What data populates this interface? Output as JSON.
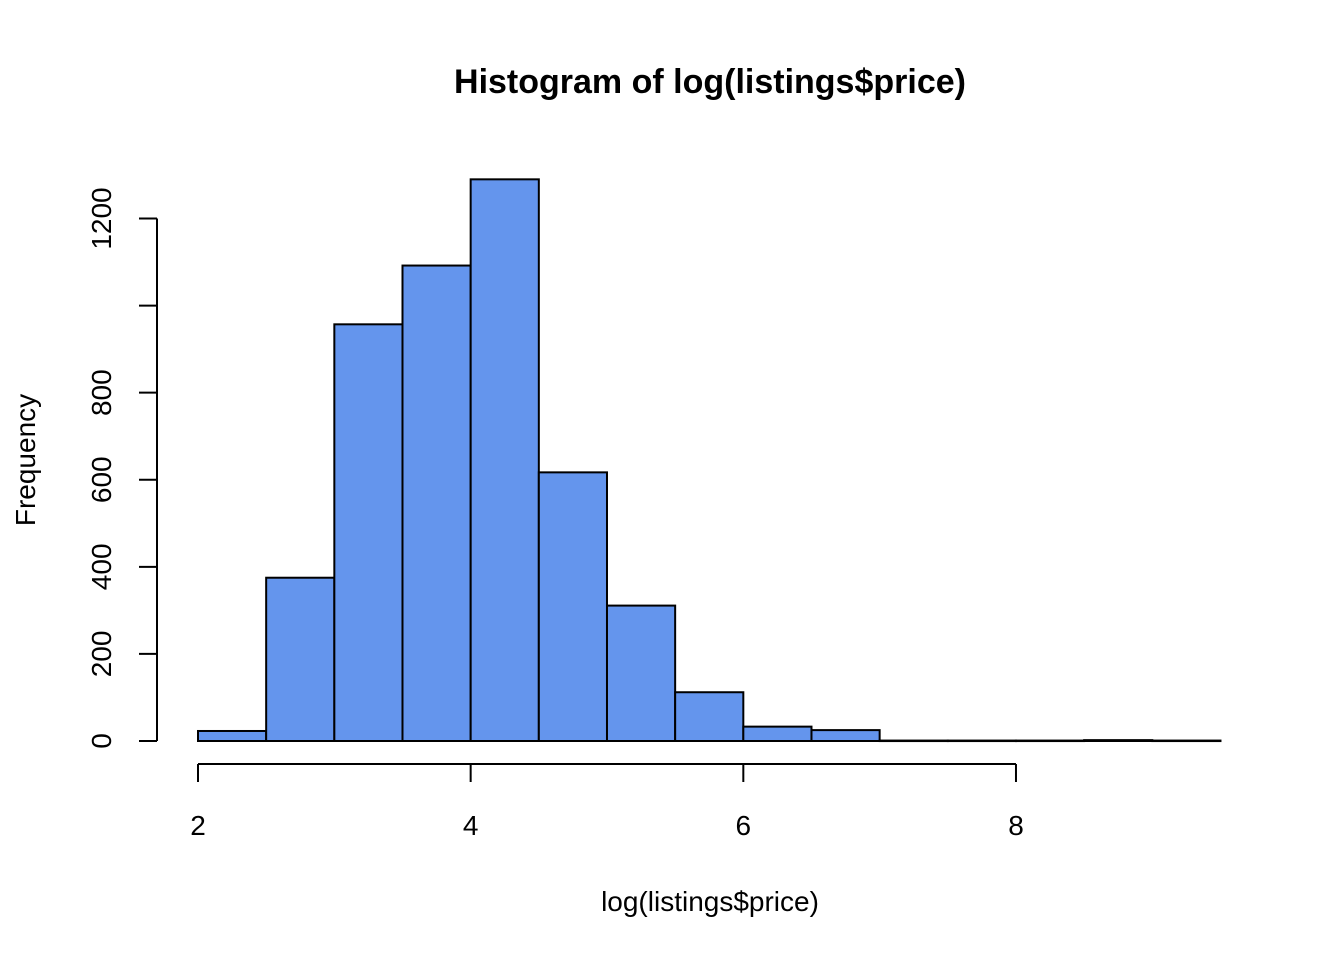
{
  "chart_data": {
    "type": "bar",
    "title": "Histogram of log(listings$price)",
    "xlabel": "log(listings$price)",
    "ylabel": "Frequency",
    "xlim": [
      2,
      9.5
    ],
    "ylim": [
      0,
      1290
    ],
    "xticks": [
      "2",
      "4",
      "6",
      "8"
    ],
    "yticks": [
      "0",
      "200",
      "400",
      "600",
      "800",
      "1200"
    ],
    "ytick_values": [
      0,
      200,
      400,
      600,
      800,
      1000,
      1200
    ],
    "grid": false,
    "bin_edges": [
      2,
      2.5,
      3,
      3.5,
      4,
      4.5,
      5,
      5.5,
      6,
      6.5,
      7,
      7.5,
      8,
      8.5,
      9,
      9.5
    ],
    "values": [
      23,
      375,
      957,
      1092,
      1290,
      617,
      311,
      112,
      33,
      25,
      1,
      1,
      1,
      2,
      1
    ],
    "bar_color": "#6495ED"
  }
}
